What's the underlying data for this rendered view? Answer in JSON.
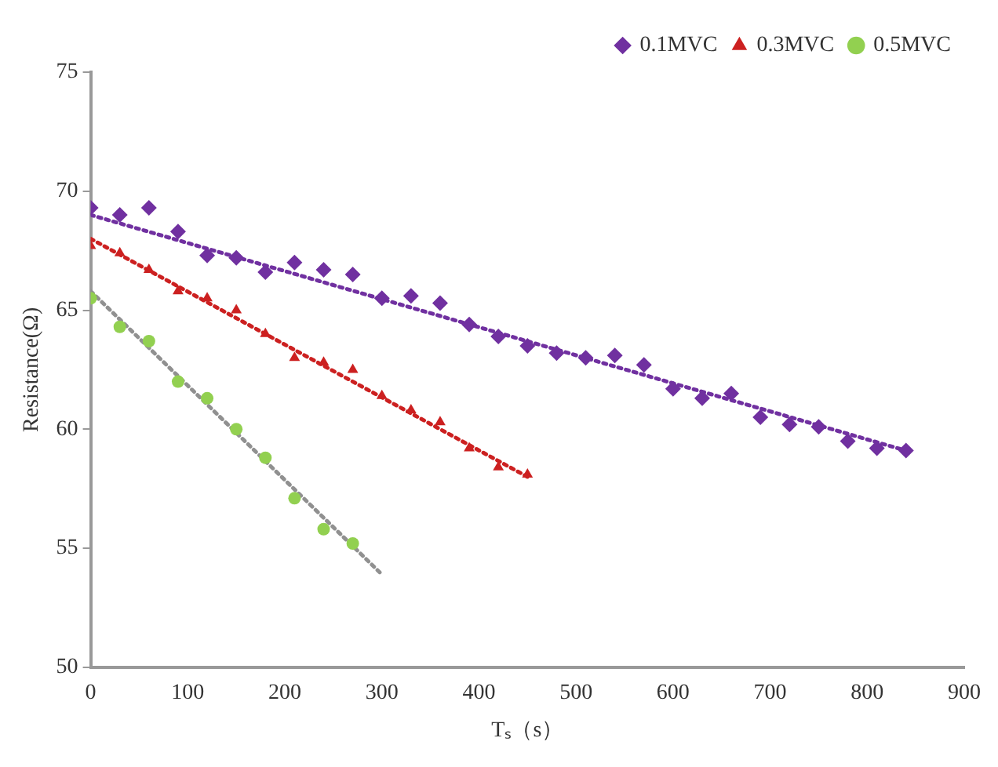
{
  "chart_data": {
    "type": "scatter",
    "xlabel": "Tₛ（s）",
    "ylabel": "Resistance(Ω)",
    "xlim": [
      0,
      900
    ],
    "xticks": [
      0,
      100,
      200,
      300,
      400,
      500,
      600,
      700,
      800,
      900
    ],
    "ylim": [
      50,
      75
    ],
    "yticks": [
      50,
      55,
      60,
      65,
      70,
      75
    ],
    "grid": false,
    "legend": "top right",
    "series": [
      {
        "name": "0.1MVC",
        "color": "#7030a0",
        "marker": "diamond",
        "x": [
          0,
          30,
          60,
          90,
          120,
          150,
          180,
          210,
          240,
          270,
          300,
          330,
          360,
          390,
          420,
          450,
          480,
          510,
          540,
          570,
          600,
          630,
          660,
          690,
          720,
          750,
          780,
          810,
          840
        ],
        "values": [
          69.3,
          69.0,
          69.3,
          68.3,
          67.3,
          67.2,
          66.6,
          67.0,
          66.7,
          66.5,
          65.5,
          65.6,
          65.3,
          64.4,
          63.9,
          63.5,
          63.2,
          63.0,
          63.1,
          62.7,
          61.7,
          61.3,
          61.5,
          60.5,
          60.2,
          60.1,
          59.5,
          59.2,
          59.1
        ]
      },
      {
        "name": "0.3MVC",
        "color": "#cc2020",
        "marker": "triangle",
        "x": [
          0,
          30,
          60,
          90,
          120,
          150,
          180,
          210,
          240,
          270,
          300,
          330,
          360,
          390,
          420,
          450
        ],
        "values": [
          67.7,
          67.4,
          66.7,
          65.8,
          65.5,
          65.0,
          64.0,
          63.0,
          62.8,
          62.5,
          61.4,
          60.8,
          60.3,
          59.2,
          58.4,
          58.1
        ]
      },
      {
        "name": "0.5MVC",
        "color": "#92d050",
        "marker": "circle",
        "x": [
          0,
          30,
          60,
          90,
          120,
          150,
          180,
          210,
          240,
          270
        ],
        "values": [
          65.5,
          64.3,
          63.7,
          62.0,
          61.3,
          60.0,
          58.8,
          57.1,
          55.8,
          55.2
        ]
      },
      {
        "type": "line",
        "color": "#7030a0",
        "marker": "none",
        "line_style": "dotted",
        "x": [
          0,
          840
        ],
        "values": [
          69.0,
          59.1
        ]
      },
      {
        "type": "line",
        "color": "#cc2020",
        "marker": "none",
        "line_style": "dotted",
        "x": [
          0,
          450
        ],
        "values": [
          68.0,
          58.0
        ]
      },
      {
        "type": "line",
        "color": "#909090",
        "marker": "none",
        "line_style": "dotted",
        "x": [
          0,
          300
        ],
        "values": [
          65.8,
          53.9
        ]
      }
    ]
  }
}
